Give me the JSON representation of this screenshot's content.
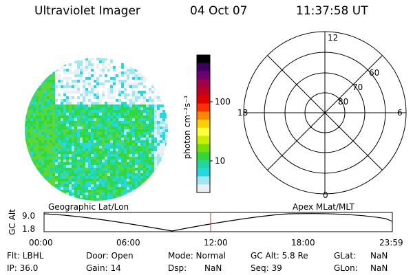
{
  "header": {
    "title": "Ultraviolet Imager",
    "date": "04 Oct 07",
    "time": "11:37:58 UT"
  },
  "colorbar": {
    "unit_label": "photon cm⁻²s⁻¹",
    "ticks": [
      "100",
      "10"
    ],
    "colors": [
      "#000000",
      "#3a0060",
      "#70006e",
      "#a0004c",
      "#c00020",
      "#e00000",
      "#ff3000",
      "#ff8a00",
      "#ffd000",
      "#ffff40",
      "#c8f000",
      "#78e000",
      "#30d838",
      "#20d8a0",
      "#28d8e0",
      "#a0e8f0",
      "#e8f0f4"
    ]
  },
  "polar": {
    "labels": [
      "12",
      "60",
      "70",
      "80",
      "18",
      "6",
      "0"
    ]
  },
  "timeline": {
    "y_axis_label": "GC Alt",
    "y_max": "9.0",
    "y_min": "1.8",
    "left_title": "Geographic Lat/Lon",
    "right_title": "Apex MLat/MLT",
    "ticks": [
      "00:00",
      "06:00",
      "12:00",
      "18:00",
      "23:59"
    ],
    "marker_color": "#c04040"
  },
  "info": {
    "flt": "Flt: LBHL",
    "door": "Door: Open",
    "mode": "Mode: Normal",
    "gcalt": "GC Alt: 5.8 Re",
    "glat_label": "GLat:",
    "glat_value": "NaN",
    "ip": "IP: 36.0",
    "gain": "Gain: 14",
    "dsp_label": "Dsp:",
    "dsp_value": "NaN",
    "seq": "Seq: 39",
    "glon_label": "GLon:",
    "glon_value": "NaN"
  }
}
